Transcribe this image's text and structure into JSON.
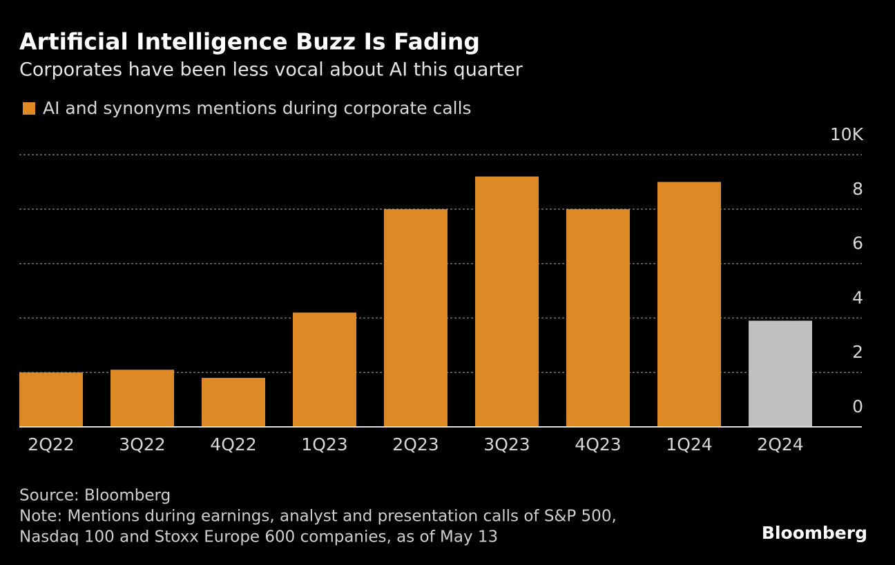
{
  "chart_data": {
    "type": "bar",
    "title": "Artificial Intelligence Buzz Is Fading",
    "subtitle": "Corporates have been less vocal about AI this quarter",
    "legend": "AI and synonyms mentions during corporate calls",
    "categories": [
      "2Q22",
      "3Q22",
      "4Q22",
      "1Q23",
      "2Q23",
      "3Q23",
      "4Q23",
      "1Q24",
      "2Q24"
    ],
    "values": [
      2.0,
      2.1,
      1.8,
      4.2,
      8.0,
      9.2,
      8.0,
      9.0,
      3.9
    ],
    "colors": [
      "#dd8a26",
      "#dd8a26",
      "#dd8a26",
      "#dd8a26",
      "#dd8a26",
      "#dd8a26",
      "#dd8a26",
      "#dd8a26",
      "#c0c0c0"
    ],
    "ylim": [
      0,
      10
    ],
    "yticks": [
      0,
      2,
      4,
      6,
      8,
      {
        "value": 10,
        "label": "10K"
      }
    ],
    "grid": true,
    "source": "Source: Bloomberg",
    "note": [
      "Note: Mentions during earnings, analyst and presentation calls of S&P 500,",
      "Nasdaq 100 and Stoxx Europe 600 companies, as of May 13"
    ],
    "logo": "Bloomberg"
  }
}
